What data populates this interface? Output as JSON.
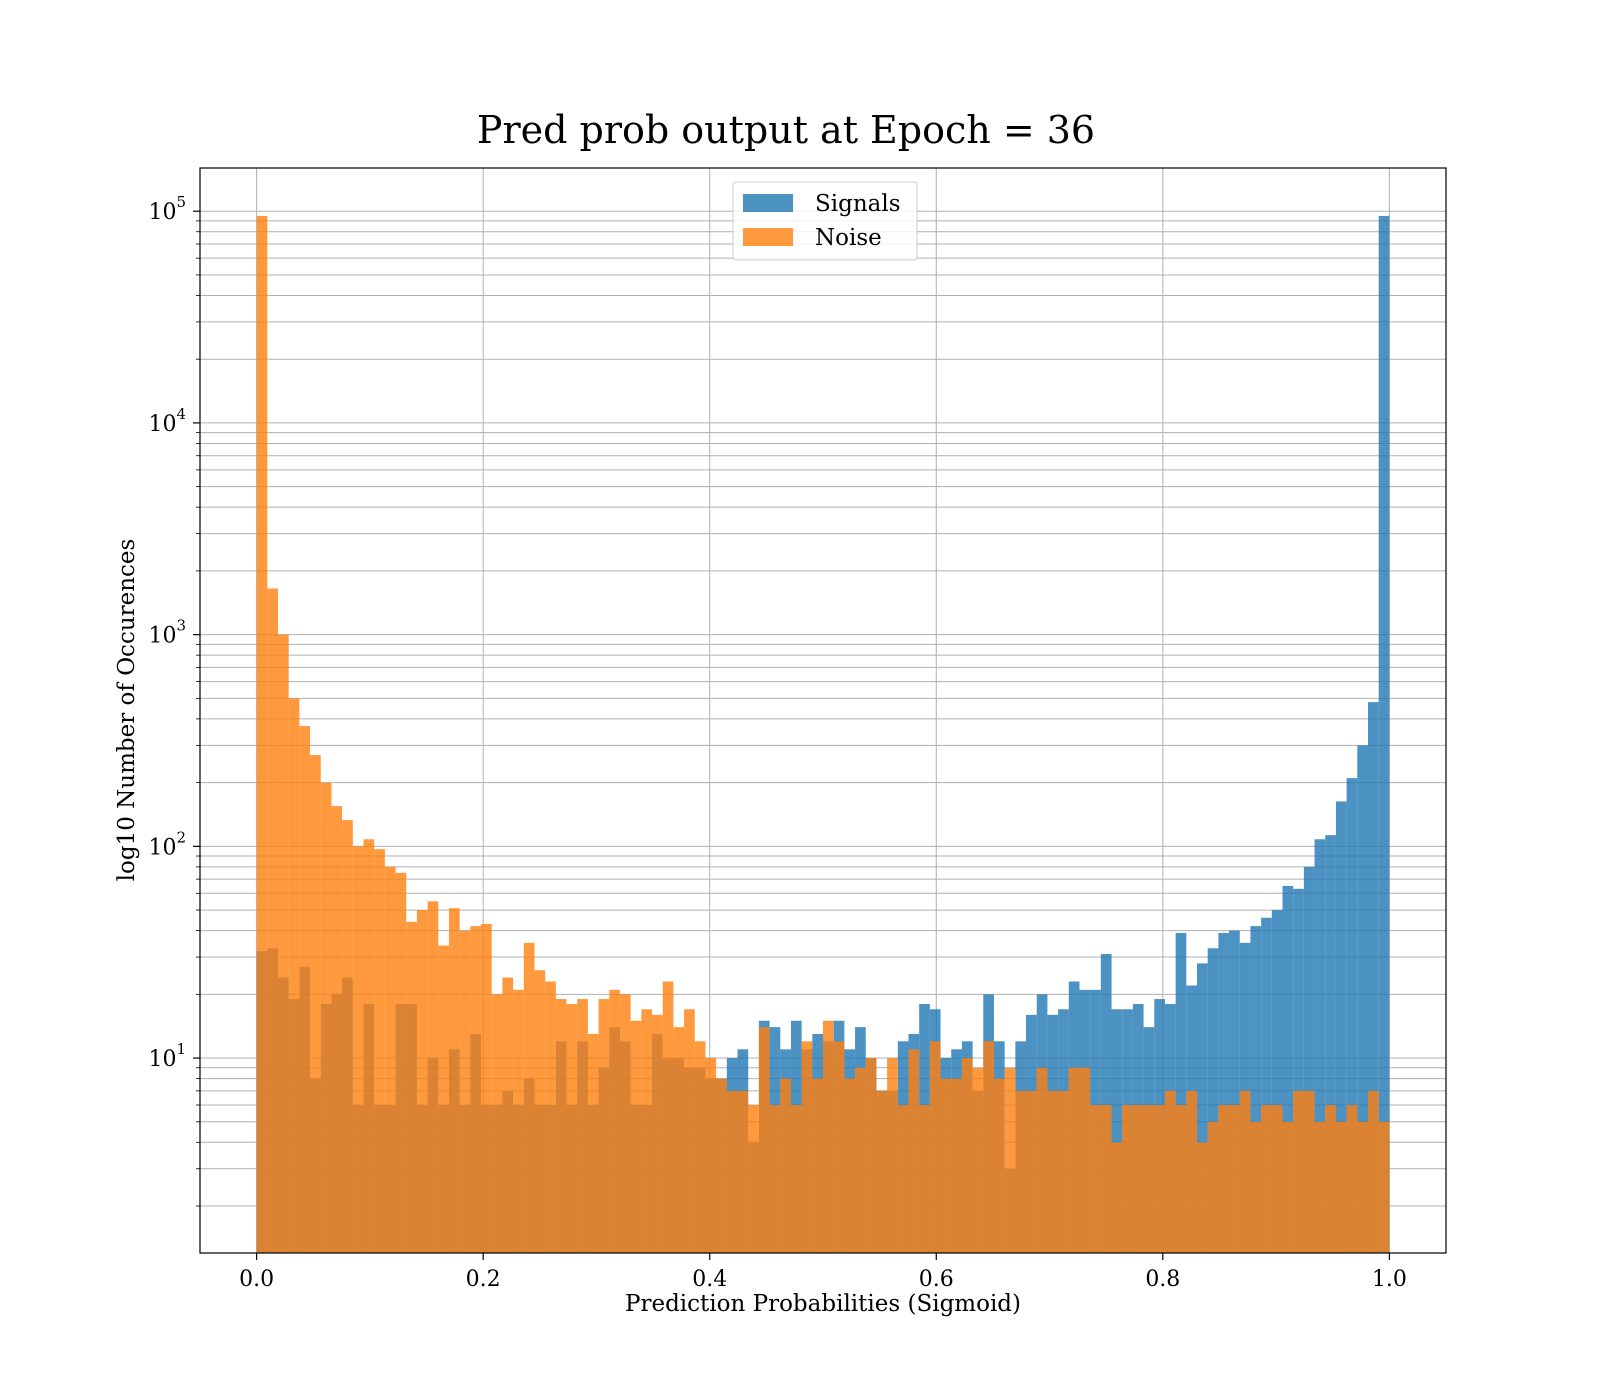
{
  "chart_data": {
    "type": "bar",
    "title": "Pred prob output at Epoch = 36",
    "xlabel": "Prediction Probabilities (Sigmoid)",
    "ylabel": "log10 Number of Occurences",
    "y_scale": "log",
    "xlim": [
      -0.05,
      1.05
    ],
    "ylim": [
      1.2,
      160000
    ],
    "bin_range": [
      0,
      1
    ],
    "x_ticks": [
      "0.0",
      "0.2",
      "0.4",
      "0.6",
      "0.8",
      "1.0"
    ],
    "x_tick_values": [
      0,
      0.2,
      0.4,
      0.6,
      0.8,
      1.0
    ],
    "y_ticks": [
      {
        "value": 10,
        "base": "10",
        "exp": "1"
      },
      {
        "value": 100,
        "base": "10",
        "exp": "2"
      },
      {
        "value": 1000,
        "base": "10",
        "exp": "3"
      },
      {
        "value": 10000,
        "base": "10",
        "exp": "4"
      },
      {
        "value": 100000,
        "base": "10",
        "exp": "5"
      }
    ],
    "grid": true,
    "legend_position": "top-center",
    "series": [
      {
        "name": "Signals",
        "color": "#1f77b4",
        "values": [
          32,
          33,
          24,
          19,
          27,
          8,
          18,
          20,
          24,
          6,
          18,
          6,
          6,
          18,
          18,
          6,
          10,
          6,
          11,
          6,
          13,
          6,
          6,
          7,
          6,
          8,
          6,
          6,
          12,
          6,
          12,
          6,
          9,
          14,
          12,
          6,
          6,
          13,
          10,
          10,
          9,
          9,
          8,
          8,
          10,
          11,
          4,
          15,
          14,
          11,
          15,
          11,
          13,
          12,
          15,
          11,
          14,
          10,
          7,
          7,
          12,
          13,
          18,
          17,
          10,
          11,
          12,
          7,
          20,
          12,
          3,
          12,
          16,
          20,
          16,
          17,
          23,
          21,
          21,
          31,
          17,
          17,
          18,
          14,
          19,
          18,
          39,
          22,
          28,
          33,
          39,
          40,
          35,
          42,
          46,
          50,
          65,
          63,
          80,
          108,
          113,
          163,
          210,
          300,
          480,
          95000
        ]
      },
      {
        "name": "Noise",
        "color": "#ff7f0e",
        "values": [
          95000,
          1650,
          1000,
          500,
          370,
          270,
          200,
          155,
          133,
          100,
          108,
          97,
          80,
          75,
          44,
          50,
          55,
          34,
          51,
          40,
          42,
          43,
          20,
          24,
          21,
          35,
          26,
          23,
          19,
          18,
          19,
          13,
          19,
          21,
          20,
          15,
          17,
          16,
          23,
          14,
          17,
          12,
          10,
          8,
          7,
          7,
          6,
          14,
          6,
          8,
          6,
          12,
          8,
          15,
          12,
          8,
          9,
          10,
          7,
          10,
          6,
          11,
          6,
          12,
          8,
          8,
          10,
          9,
          12,
          8,
          9,
          7,
          7,
          9,
          7,
          7,
          9,
          9,
          6,
          6,
          4,
          6,
          6,
          6,
          6,
          7,
          6,
          7,
          4,
          5,
          6,
          6,
          7,
          5,
          6,
          6,
          5,
          7,
          7,
          5,
          6,
          5,
          6,
          5,
          7,
          5
        ]
      }
    ]
  }
}
